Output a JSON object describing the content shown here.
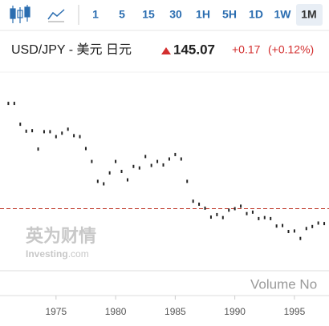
{
  "toolbar": {
    "intervals": [
      "1",
      "5",
      "15",
      "30",
      "1H",
      "5H",
      "1D",
      "1W",
      "1M"
    ],
    "selected": "1M"
  },
  "quote": {
    "title": "USD/JPY - 美元 日元",
    "price": 145.07,
    "change": "+0.17",
    "change_pct": "(+0.12%)"
  },
  "watermark": {
    "brand": "英为财情",
    "site": "Investing",
    "domain": ".com"
  },
  "volume_label": "Volume No",
  "chart_data": {
    "type": "candlestick",
    "x": [
      1971.0,
      1971.5,
      1972.0,
      1972.5,
      1973.0,
      1973.5,
      1974.0,
      1974.5,
      1975.0,
      1975.5,
      1976.0,
      1976.5,
      1977.0,
      1977.5,
      1978.0,
      1978.5,
      1979.0,
      1979.5,
      1980.0,
      1980.5,
      1981.0,
      1981.5,
      1982.0,
      1982.5,
      1983.0,
      1983.5,
      1984.0,
      1984.5,
      1985.0,
      1985.5,
      1986.0,
      1986.5,
      1987.0,
      1987.5,
      1988.0,
      1988.5,
      1989.0,
      1989.5,
      1990.0,
      1990.5,
      1991.0,
      1991.5,
      1992.0,
      1992.5,
      1993.0,
      1993.5,
      1994.0,
      1994.5,
      1995.0,
      1995.5,
      1996.0,
      1996.5,
      1997.0,
      1997.5
    ],
    "values": [
      357,
      357,
      315,
      301,
      302,
      265,
      300,
      300,
      290,
      297,
      305,
      292,
      290,
      266,
      240,
      200,
      195,
      217,
      240,
      220,
      203,
      230,
      227,
      250,
      232,
      240,
      233,
      245,
      254,
      245,
      200,
      160,
      154,
      146,
      128,
      133,
      127,
      142,
      145,
      150,
      135,
      138,
      125,
      127,
      125,
      110,
      111,
      99,
      100,
      85,
      105,
      109,
      116,
      115
    ],
    "color": "#222222",
    "xlim": [
      1970.3,
      1997.9
    ],
    "xticks": [
      1975,
      1980,
      1985,
      1990,
      1995
    ],
    "ylim": [
      20,
      420
    ],
    "price_line_color": "#c0392b"
  }
}
